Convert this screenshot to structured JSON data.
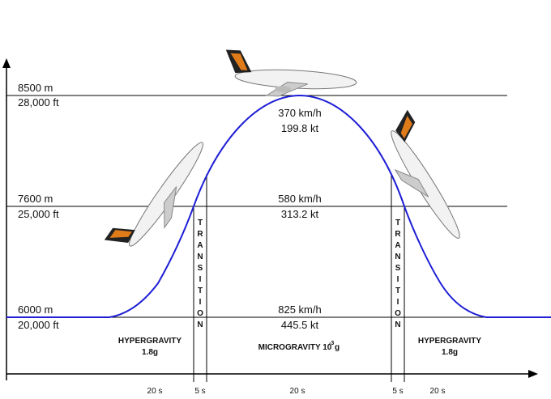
{
  "levels": [
    {
      "meters": "8500 m",
      "feet": "28,000 ft"
    },
    {
      "meters": "7600 m",
      "feet": "25,000 ft"
    },
    {
      "meters": "6000 m",
      "feet": "20,000 ft"
    }
  ],
  "speeds": [
    {
      "kmh": "370 km/h",
      "kt": "199.8 kt"
    },
    {
      "kmh": "580 km/h",
      "kt": "313.2 kt"
    },
    {
      "kmh": "825 km/h",
      "kt": "445.5 kt"
    }
  ],
  "transitions": [
    "TRANSITION",
    "TRANSITION"
  ],
  "phases": [
    {
      "name": "HYPERGRAVITY",
      "g": "1.8g"
    },
    {
      "name": "MICROGRAVITY 10",
      "exponent": "-3",
      "unit": "g"
    },
    {
      "name": "HYPERGRAVITY",
      "g": "1.8g"
    }
  ],
  "durations": [
    "20 s",
    "5 s",
    "20 s",
    "5 s",
    "20 s"
  ]
}
